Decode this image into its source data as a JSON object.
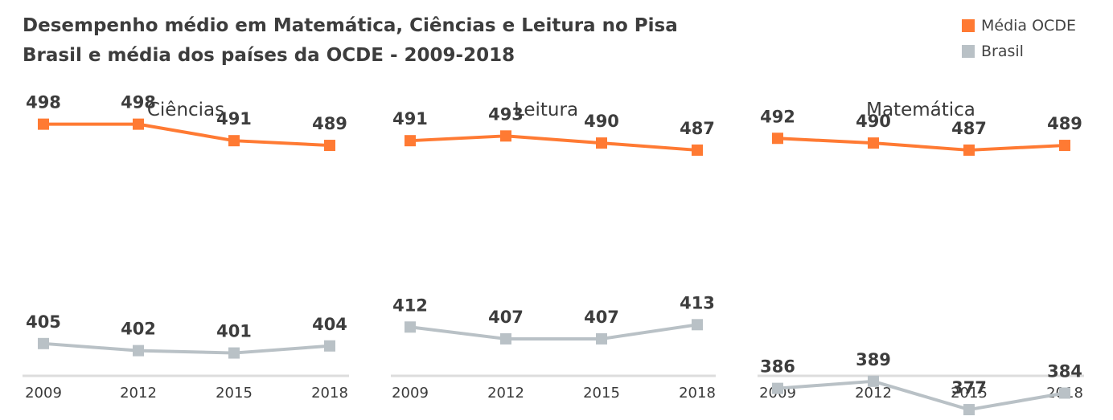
{
  "header": {
    "title_line1": "Desempenho médio em Matemática, Ciências e Leitura no Pisa",
    "title_line2": "Brasil e média dos países da OCDE - 2009-2018"
  },
  "legend": [
    {
      "label": "Média OCDE",
      "color": "#ff7a33"
    },
    {
      "label": "Brasil",
      "color": "#b9c1c6"
    }
  ],
  "chart_data": [
    {
      "type": "line",
      "title": "Ciências",
      "x": [
        "2009",
        "2012",
        "2015",
        "2018"
      ],
      "series": [
        {
          "name": "Média OCDE",
          "values": [
            498,
            498,
            491,
            489
          ],
          "color": "#ff7a33"
        },
        {
          "name": "Brasil",
          "values": [
            405,
            402,
            401,
            404
          ],
          "color": "#b9c1c6"
        }
      ],
      "ylim": [
        360,
        520
      ],
      "grid": false,
      "legend": "top-right"
    },
    {
      "type": "line",
      "title": "Leitura",
      "x": [
        "2009",
        "2012",
        "2015",
        "2018"
      ],
      "series": [
        {
          "name": "Média OCDE",
          "values": [
            491,
            493,
            490,
            487
          ],
          "color": "#ff7a33"
        },
        {
          "name": "Brasil",
          "values": [
            412,
            407,
            407,
            413
          ],
          "color": "#b9c1c6"
        }
      ],
      "ylim": [
        360,
        520
      ],
      "grid": false,
      "legend": "top-right"
    },
    {
      "type": "line",
      "title": "Matemática",
      "x": [
        "2009",
        "2012",
        "2015",
        "2018"
      ],
      "series": [
        {
          "name": "Média OCDE",
          "values": [
            492,
            490,
            487,
            489
          ],
          "color": "#ff7a33"
        },
        {
          "name": "Brasil",
          "values": [
            386,
            389,
            377,
            384
          ],
          "color": "#b9c1c6"
        }
      ],
      "ylim": [
        360,
        520
      ],
      "grid": false,
      "legend": "top-right"
    }
  ]
}
